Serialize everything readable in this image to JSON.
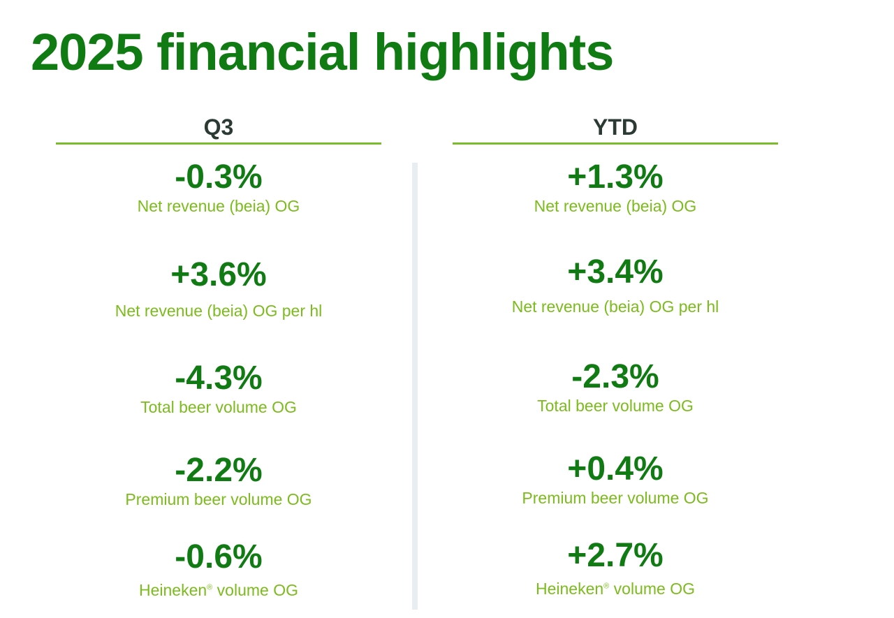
{
  "title": "2025 financial highlights",
  "columns": [
    {
      "heading": "Q3",
      "metrics": [
        {
          "value": "-0.3%",
          "label": "Net revenue (beia) OG"
        },
        {
          "value": "+3.6%",
          "label": "Net revenue (beia) OG per hl"
        },
        {
          "value": "-4.3%",
          "label": "Total beer volume OG"
        },
        {
          "value": "-2.2%",
          "label": "Premium beer volume OG"
        },
        {
          "value": "-0.6%",
          "label_brand": "Heineken",
          "label_mark": "®",
          "label_rest": " volume OG"
        }
      ]
    },
    {
      "heading": "YTD",
      "metrics": [
        {
          "value": "+1.3%",
          "label": "Net revenue (beia) OG"
        },
        {
          "value": "+3.4%",
          "label": "Net revenue (beia) OG per hl"
        },
        {
          "value": "-2.3%",
          "label": "Total beer volume OG"
        },
        {
          "value": "+0.4%",
          "label": "Premium beer volume OG"
        },
        {
          "value": "+2.7%",
          "label_brand": "Heineken",
          "label_mark": "®",
          "label_rest": " volume OG"
        }
      ]
    }
  ],
  "colors": {
    "title": "#107a13",
    "value": "#107a13",
    "label": "#7cbb1c",
    "rule": "#7cbb2c",
    "divider": "#e8edf1"
  }
}
